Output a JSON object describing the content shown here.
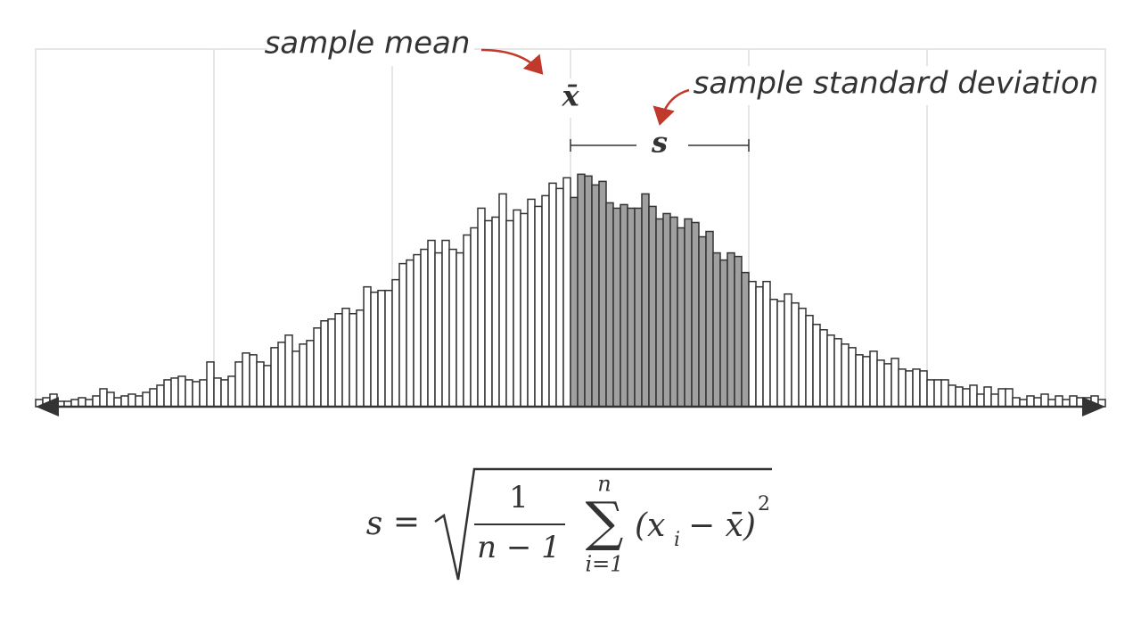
{
  "chart_data": {
    "type": "histogram",
    "bins": [
      -3,
      -2.96,
      -2.92,
      -2.88,
      -2.84,
      -2.8,
      -2.76,
      -2.72,
      -2.68,
      -2.64,
      -2.6,
      -2.56,
      -2.52,
      -2.48,
      -2.44,
      -2.4,
      -2.36,
      -2.32,
      -2.28,
      -2.24,
      -2.2,
      -2.16,
      -2.12,
      -2.08,
      -2.04,
      -2,
      -1.96,
      -1.92,
      -1.88,
      -1.84,
      -1.8,
      -1.76,
      -1.72,
      -1.68,
      -1.64,
      -1.6,
      -1.56,
      -1.52,
      -1.48,
      -1.44,
      -1.4,
      -1.36,
      -1.32,
      -1.28,
      -1.24,
      -1.2,
      -1.16,
      -1.12,
      -1.08,
      -1.04,
      -1,
      -0.96,
      -0.92,
      -0.88,
      -0.84,
      -0.8,
      -0.76,
      -0.72,
      -0.68,
      -0.64,
      -0.6,
      -0.56,
      -0.52,
      -0.48,
      -0.44,
      -0.4,
      -0.36,
      -0.32,
      -0.28,
      -0.24,
      -0.2,
      -0.16,
      -0.12,
      -0.08,
      -0.04,
      0,
      0.04,
      0.08,
      0.12,
      0.16,
      0.2,
      0.24,
      0.28,
      0.32,
      0.36,
      0.4,
      0.44,
      0.48,
      0.52,
      0.56,
      0.6,
      0.64,
      0.68,
      0.72,
      0.76,
      0.8,
      0.84,
      0.88,
      0.92,
      0.96,
      1,
      1.04,
      1.08,
      1.12,
      1.16,
      1.2,
      1.24,
      1.28,
      1.32,
      1.36,
      1.4,
      1.44,
      1.48,
      1.52,
      1.56,
      1.6,
      1.64,
      1.68,
      1.72,
      1.76,
      1.8,
      1.84,
      1.88,
      1.92,
      1.96,
      2,
      2.04,
      2.08,
      2.12,
      2.16,
      2.2,
      2.24,
      2.28,
      2.32,
      2.36,
      2.4,
      2.44,
      2.48,
      2.52,
      2.56,
      2.6,
      2.64,
      2.68,
      2.72,
      2.76,
      2.8,
      2.84,
      2.88,
      2.92,
      2.96,
      3
    ],
    "values": [
      8,
      10,
      14,
      6,
      6,
      8,
      10,
      8,
      12,
      20,
      16,
      10,
      12,
      14,
      12,
      16,
      20,
      24,
      30,
      32,
      34,
      30,
      28,
      30,
      50,
      32,
      30,
      34,
      50,
      60,
      58,
      50,
      46,
      66,
      72,
      80,
      62,
      70,
      74,
      88,
      96,
      98,
      104,
      110,
      104,
      108,
      134,
      128,
      130,
      130,
      142,
      160,
      164,
      170,
      176,
      186,
      172,
      186,
      176,
      172,
      192,
      200,
      222,
      208,
      212,
      238,
      208,
      220,
      216,
      232,
      224,
      236,
      250,
      244,
      256,
      234,
      260,
      258,
      248,
      252,
      228,
      222,
      226,
      222,
      222,
      238,
      224,
      210,
      216,
      212,
      200,
      210,
      206,
      190,
      196,
      172,
      164,
      172,
      168,
      150,
      140,
      134,
      140,
      120,
      118,
      126,
      116,
      110,
      102,
      92,
      86,
      80,
      76,
      70,
      66,
      58,
      56,
      62,
      52,
      48,
      54,
      42,
      40,
      42,
      40,
      30,
      30,
      30,
      24,
      22,
      20,
      24,
      14,
      22,
      14,
      20,
      20,
      10,
      8,
      12,
      10,
      14,
      8,
      12,
      8,
      12,
      10,
      10,
      12,
      8
    ],
    "mean": 0,
    "sd": 1,
    "xlim": [
      -3,
      3
    ],
    "ylim": [
      0,
      400
    ],
    "grid": true,
    "color": "#ffffff",
    "highlight_color": "#a0a0a0",
    "annotations": {
      "mean_label": "sample mean",
      "mean_symbol": "x̄",
      "sd_label": "sample standard deviation",
      "sd_symbol": "s"
    },
    "formula": {
      "lhs": "s",
      "eq": "=",
      "num": "1",
      "den": "n − 1",
      "sigma": "∑",
      "sum_top": "n",
      "sum_bottom": "i=1",
      "body": "(x",
      "sub": "i",
      "rest": "− x̄)",
      "power": "2"
    }
  }
}
